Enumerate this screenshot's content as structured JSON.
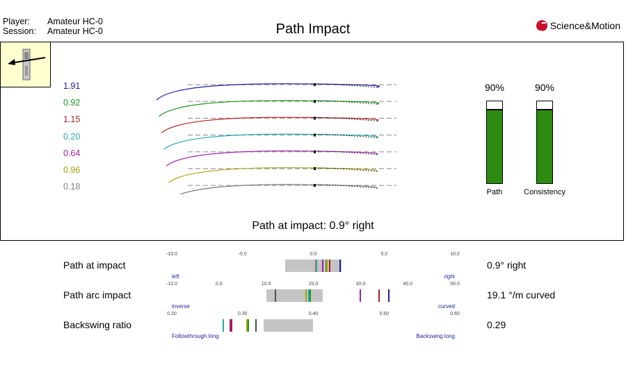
{
  "header": {
    "player_label": "Player:",
    "player_value": "Amateur HC-0",
    "session_label": "Session:",
    "session_value": "Amateur HC-0",
    "title": "Path Impact",
    "brand": "Science&Motion",
    "brand_color": "#c8102e"
  },
  "icons": {
    "putter": "putter-direction-icon",
    "logo": "science-motion-logo-icon"
  },
  "chart_data": [
    {
      "type": "line",
      "title": "",
      "series": [
        {
          "name": "",
          "value_label": "1.91",
          "color": "#1e1ea0"
        },
        {
          "name": "",
          "value_label": "0.92",
          "color": "#1a9a1a"
        },
        {
          "name": "",
          "value_label": "1.15",
          "color": "#b01e1e"
        },
        {
          "name": "",
          "value_label": "0.20",
          "color": "#20a8b0"
        },
        {
          "name": "",
          "value_label": "0.64",
          "color": "#a020a8"
        },
        {
          "name": "",
          "value_label": "0.96",
          "color": "#a8a010"
        },
        {
          "name": "",
          "value_label": "0.18",
          "color": "#808080"
        }
      ]
    },
    {
      "type": "bar",
      "categories": [
        "Path",
        "Consistency"
      ],
      "values": [
        90,
        90
      ],
      "value_labels": [
        "90%",
        "90%"
      ],
      "ylim": [
        0,
        100
      ],
      "color": "#2e8b12"
    }
  ],
  "summary": "Path at impact: 0.9° right",
  "scales": [
    {
      "label": "Path at impact",
      "result": "0.9° right",
      "min": -10,
      "max": 10,
      "ticks": [
        "-10.0",
        "-5.0",
        "0.0",
        "5.0",
        "10.0"
      ],
      "left_label": "left",
      "right_label": "right",
      "range": [
        -2,
        2
      ],
      "marks": [
        {
          "v": 0.2,
          "color": "#20a8b0"
        },
        {
          "v": 0.64,
          "color": "#a020a8"
        },
        {
          "v": 0.92,
          "color": "#1a9a1a"
        },
        {
          "v": 0.96,
          "color": "#a8a010"
        },
        {
          "v": 1.15,
          "color": "#b01e1e"
        },
        {
          "v": 1.91,
          "color": "#1e1ea0"
        },
        {
          "v": 0.18,
          "color": "#808080"
        }
      ]
    },
    {
      "label": "Path arc impact",
      "result": "19.1 °/m curved",
      "min": -10,
      "max": 50,
      "ticks": [
        "-10.0",
        "0.0",
        "10.0",
        "20.0",
        "30.0",
        "40.0",
        "50.0"
      ],
      "left_label": "inverse",
      "right_label": "curved",
      "range": [
        10,
        22
      ],
      "marks": [
        {
          "v": 12,
          "color": "#505050"
        },
        {
          "v": 18.5,
          "color": "#a8a010"
        },
        {
          "v": 19,
          "color": "#20a8b0"
        },
        {
          "v": 19.4,
          "color": "#1a9a1a"
        },
        {
          "v": 30,
          "color": "#a020a8"
        },
        {
          "v": 34,
          "color": "#b01e1e"
        },
        {
          "v": 36,
          "color": "#1e1ea0"
        }
      ]
    },
    {
      "label": "Backswing ratio",
      "result": "0.29",
      "min": 0.2,
      "max": 0.6,
      "ticks": [
        "0.20",
        "0.30",
        "0.40",
        "0.50",
        "0.60"
      ],
      "left_label": "Followthrough long",
      "right_label": "Backswing long",
      "range": [
        0.33,
        0.4
      ],
      "marks": [
        {
          "v": 0.273,
          "color": "#20a8b0"
        },
        {
          "v": 0.283,
          "color": "#a020a8"
        },
        {
          "v": 0.285,
          "color": "#b01e1e"
        },
        {
          "v": 0.306,
          "color": "#a8a010"
        },
        {
          "v": 0.308,
          "color": "#1a9a1a"
        },
        {
          "v": 0.319,
          "color": "#505050"
        }
      ]
    }
  ]
}
